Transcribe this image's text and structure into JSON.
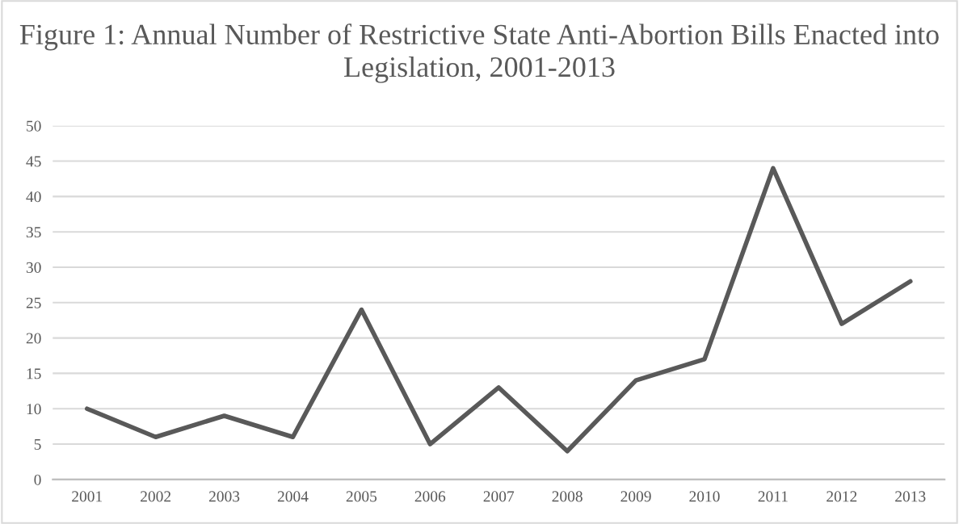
{
  "chart_data": {
    "type": "line",
    "title": "Figure 1: Annual Number of Restrictive State Anti-Abortion Bills Enacted into Legislation, 2001-2013",
    "categories": [
      "2001",
      "2002",
      "2003",
      "2004",
      "2005",
      "2006",
      "2007",
      "2008",
      "2009",
      "2010",
      "2011",
      "2012",
      "2013"
    ],
    "series": [
      {
        "color": "#595959",
        "values": [
          10,
          6,
          9,
          6,
          24,
          5,
          13,
          4,
          14,
          17,
          44,
          22,
          28
        ]
      }
    ],
    "ylim": [
      0,
      50
    ],
    "yticks": [
      0,
      5,
      10,
      15,
      20,
      25,
      30,
      35,
      40,
      45,
      50
    ],
    "grid": "y",
    "marker": "none",
    "line_style": "solid"
  }
}
